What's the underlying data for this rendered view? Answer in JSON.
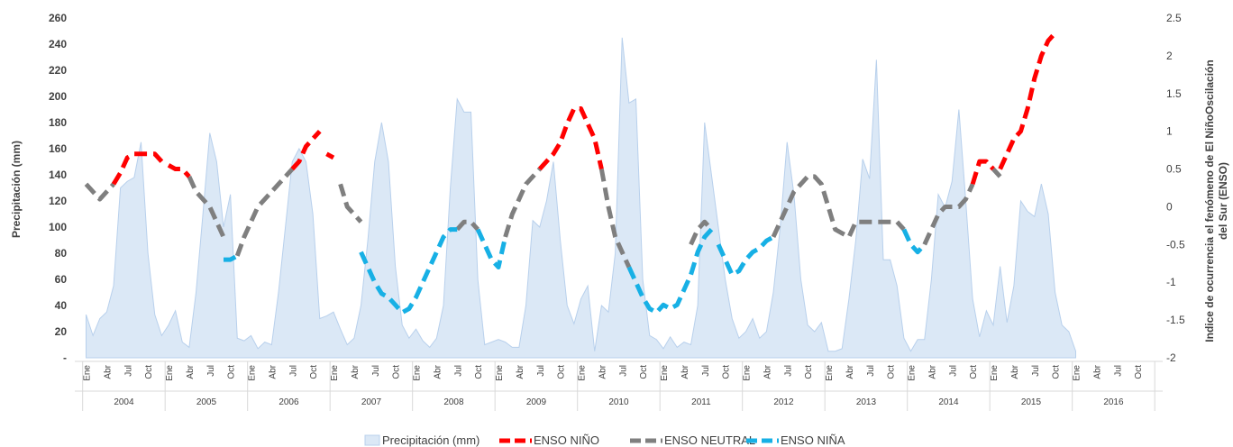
{
  "chart_data": {
    "type": "area",
    "ylabel_left": "Precipitación (mm)",
    "ylabel_right_line1": "Indice de ocurrencia el fenómeno de El NiñoOscilación",
    "ylabel_right_line2": "del  Sur (ENSO)",
    "left_ticks": [
      "260",
      "240",
      "220",
      "200",
      "180",
      "160",
      "140",
      "120",
      "100",
      "80",
      "60",
      "40",
      "20",
      "-"
    ],
    "left_ylim": [
      0,
      260
    ],
    "right_ticks": [
      "2.5",
      "2",
      "1.5",
      "1",
      "0.5",
      "0",
      "-0.5",
      "-1",
      "-1.5",
      "-2"
    ],
    "right_ylim": [
      -2,
      2.5
    ],
    "month_labels": [
      "Ene",
      "Abr",
      "Jul",
      "Oct"
    ],
    "years": [
      "2004",
      "2005",
      "2006",
      "2007",
      "2008",
      "2009",
      "2010",
      "2011",
      "2012",
      "2013",
      "2014",
      "2015",
      "2016"
    ],
    "legend": [
      "Precipitación (mm)",
      "ENSO  NIÑO",
      "ENSO NEUTRAL",
      "ENSO NIÑA"
    ],
    "colors": {
      "area_fill": "#dbe8f6",
      "area_stroke": "#b8d0ec",
      "nino": "#ff0000",
      "neutral": "#7f7f7f",
      "nina": "#17b0e5",
      "axis": "#d9d9d9"
    },
    "precipitation": [
      [
        0,
        33
      ],
      [
        1,
        17
      ],
      [
        2,
        30
      ],
      [
        3,
        35
      ],
      [
        4,
        55
      ],
      [
        5,
        130
      ],
      [
        6,
        135
      ],
      [
        7,
        138
      ],
      [
        8,
        165
      ],
      [
        9,
        80
      ],
      [
        10,
        33
      ],
      [
        11,
        17
      ],
      [
        12,
        25
      ],
      [
        13,
        36
      ],
      [
        14,
        12
      ],
      [
        15,
        8
      ],
      [
        16,
        50
      ],
      [
        17,
        110
      ],
      [
        18,
        172
      ],
      [
        19,
        150
      ],
      [
        20,
        100
      ],
      [
        21,
        125
      ],
      [
        22,
        15
      ],
      [
        23,
        13
      ],
      [
        24,
        17
      ],
      [
        25,
        7
      ],
      [
        26,
        12
      ],
      [
        27,
        10
      ],
      [
        28,
        50
      ],
      [
        29,
        100
      ],
      [
        30,
        150
      ],
      [
        31,
        160
      ],
      [
        32,
        150
      ],
      [
        33,
        110
      ],
      [
        34,
        30
      ],
      [
        35,
        32
      ],
      [
        36,
        35
      ],
      [
        37,
        22
      ],
      [
        38,
        10
      ],
      [
        39,
        15
      ],
      [
        40,
        40
      ],
      [
        41,
        90
      ],
      [
        42,
        150
      ],
      [
        43,
        180
      ],
      [
        44,
        150
      ],
      [
        45,
        70
      ],
      [
        46,
        25
      ],
      [
        47,
        15
      ],
      [
        48,
        22
      ],
      [
        49,
        13
      ],
      [
        50,
        8
      ],
      [
        51,
        15
      ],
      [
        52,
        40
      ],
      [
        53,
        130
      ],
      [
        54,
        198
      ],
      [
        55,
        188
      ],
      [
        56,
        188
      ],
      [
        57,
        60
      ],
      [
        58,
        10
      ],
      [
        59,
        12
      ],
      [
        60,
        14
      ],
      [
        61,
        12
      ],
      [
        62,
        8
      ],
      [
        63,
        8
      ],
      [
        64,
        40
      ],
      [
        65,
        105
      ],
      [
        66,
        100
      ],
      [
        67,
        120
      ],
      [
        68,
        150
      ],
      [
        69,
        90
      ],
      [
        70,
        40
      ],
      [
        71,
        26
      ],
      [
        72,
        45
      ],
      [
        73,
        55
      ],
      [
        74,
        5
      ],
      [
        75,
        40
      ],
      [
        76,
        35
      ],
      [
        77,
        80
      ],
      [
        78,
        245
      ],
      [
        79,
        195
      ],
      [
        80,
        198
      ],
      [
        81,
        60
      ],
      [
        82,
        17
      ],
      [
        83,
        14
      ],
      [
        84,
        7
      ],
      [
        85,
        16
      ],
      [
        86,
        8
      ],
      [
        87,
        12
      ],
      [
        88,
        10
      ],
      [
        89,
        40
      ],
      [
        90,
        180
      ],
      [
        91,
        140
      ],
      [
        92,
        100
      ],
      [
        93,
        60
      ],
      [
        94,
        30
      ],
      [
        95,
        15
      ],
      [
        96,
        20
      ],
      [
        97,
        30
      ],
      [
        98,
        15
      ],
      [
        99,
        20
      ],
      [
        100,
        50
      ],
      [
        101,
        100
      ],
      [
        102,
        165
      ],
      [
        103,
        125
      ],
      [
        104,
        60
      ],
      [
        105,
        25
      ],
      [
        106,
        20
      ],
      [
        107,
        27
      ],
      [
        108,
        5
      ],
      [
        109,
        5
      ],
      [
        110,
        7
      ],
      [
        111,
        45
      ],
      [
        112,
        90
      ],
      [
        113,
        152
      ],
      [
        114,
        137
      ],
      [
        115,
        228
      ],
      [
        116,
        75
      ],
      [
        117,
        75
      ],
      [
        118,
        55
      ],
      [
        119,
        15
      ],
      [
        120,
        5
      ],
      [
        121,
        14
      ],
      [
        122,
        14
      ],
      [
        123,
        60
      ],
      [
        124,
        125
      ],
      [
        125,
        115
      ],
      [
        126,
        135
      ],
      [
        127,
        190
      ],
      [
        128,
        120
      ],
      [
        129,
        45
      ],
      [
        130,
        16
      ],
      [
        131,
        36
      ],
      [
        132,
        25
      ],
      [
        133,
        70
      ],
      [
        134,
        27
      ],
      [
        135,
        55
      ],
      [
        136,
        120
      ],
      [
        137,
        112
      ],
      [
        138,
        108
      ],
      [
        139,
        133
      ],
      [
        140,
        110
      ],
      [
        141,
        50
      ],
      [
        142,
        25
      ],
      [
        143,
        20
      ],
      [
        144,
        5
      ]
    ],
    "enso_nino": [
      [
        [
          4,
          0.3
        ],
        [
          5,
          0.45
        ],
        [
          6,
          0.65
        ],
        [
          7,
          0.7
        ],
        [
          8,
          0.7
        ],
        [
          9,
          0.7
        ],
        [
          10,
          0.7
        ],
        [
          11,
          0.6
        ]
      ],
      [
        [
          12,
          0.55
        ],
        [
          13,
          0.5
        ],
        [
          14,
          0.5
        ],
        [
          15,
          0.4
        ]
      ],
      [
        [
          30,
          0.5
        ],
        [
          31,
          0.6
        ],
        [
          32,
          0.8
        ],
        [
          33,
          0.9
        ],
        [
          34,
          1.0
        ]
      ],
      [
        [
          35,
          0.7
        ],
        [
          36,
          0.65
        ]
      ],
      [
        [
          66,
          0.5
        ],
        [
          67,
          0.6
        ],
        [
          68,
          0.7
        ],
        [
          69,
          0.85
        ],
        [
          70,
          1.1
        ],
        [
          71,
          1.3
        ],
        [
          72,
          1.3
        ],
        [
          73,
          1.1
        ],
        [
          74,
          0.9
        ],
        [
          75,
          0.5
        ]
      ],
      [
        [
          129,
          0.3
        ],
        [
          130,
          0.6
        ],
        [
          131,
          0.6
        ],
        [
          132,
          0.5
        ]
      ],
      [
        [
          133,
          0.5
        ],
        [
          134,
          0.7
        ],
        [
          135,
          0.9
        ],
        [
          136,
          1.0
        ],
        [
          137,
          1.3
        ],
        [
          138,
          1.7
        ],
        [
          139,
          2.0
        ],
        [
          140,
          2.2
        ],
        [
          141,
          2.3
        ]
      ]
    ],
    "enso_neutral": [
      [
        [
          0,
          0.3
        ],
        [
          1,
          0.2
        ],
        [
          2,
          0.1
        ],
        [
          3,
          0.2
        ],
        [
          4,
          0.3
        ]
      ],
      [
        [
          15,
          0.4
        ],
        [
          16,
          0.2
        ],
        [
          17,
          0.1
        ],
        [
          18,
          0.0
        ],
        [
          19,
          -0.2
        ],
        [
          20,
          -0.4
        ]
      ],
      [
        [
          22,
          -0.65
        ],
        [
          23,
          -0.4
        ],
        [
          24,
          -0.2
        ],
        [
          25,
          0.0
        ],
        [
          26,
          0.1
        ],
        [
          27,
          0.2
        ],
        [
          28,
          0.3
        ],
        [
          29,
          0.4
        ],
        [
          30,
          0.5
        ]
      ],
      [
        [
          37,
          0.3
        ],
        [
          38,
          0.0
        ],
        [
          39,
          -0.1
        ],
        [
          40,
          -0.2
        ]
      ],
      [
        [
          54,
          -0.3
        ],
        [
          55,
          -0.2
        ],
        [
          56,
          -0.2
        ],
        [
          57,
          -0.3
        ]
      ],
      [
        [
          61,
          -0.4
        ],
        [
          62,
          -0.1
        ],
        [
          63,
          0.1
        ],
        [
          64,
          0.3
        ],
        [
          65,
          0.4
        ],
        [
          66,
          0.5
        ]
      ],
      [
        [
          75,
          0.5
        ],
        [
          76,
          0.0
        ],
        [
          77,
          -0.4
        ],
        [
          78,
          -0.6
        ],
        [
          79,
          -0.8
        ]
      ],
      [
        [
          88,
          -0.5
        ],
        [
          89,
          -0.3
        ],
        [
          90,
          -0.2
        ],
        [
          91,
          -0.3
        ]
      ],
      [
        [
          100,
          -0.4
        ],
        [
          101,
          -0.2
        ],
        [
          102,
          0.0
        ],
        [
          103,
          0.2
        ],
        [
          104,
          0.3
        ],
        [
          105,
          0.4
        ],
        [
          106,
          0.4
        ],
        [
          107,
          0.3
        ],
        [
          108,
          0.0
        ],
        [
          109,
          -0.3
        ],
        [
          110,
          -0.35
        ],
        [
          111,
          -0.4
        ],
        [
          112,
          -0.2
        ],
        [
          113,
          -0.2
        ],
        [
          114,
          -0.2
        ],
        [
          115,
          -0.2
        ],
        [
          116,
          -0.2
        ],
        [
          117,
          -0.2
        ],
        [
          118,
          -0.2
        ],
        [
          119,
          -0.3
        ]
      ],
      [
        [
          122,
          -0.5
        ],
        [
          123,
          -0.3
        ],
        [
          124,
          -0.1
        ],
        [
          125,
          0.0
        ],
        [
          126,
          0.0
        ],
        [
          127,
          0.0
        ],
        [
          128,
          0.1
        ],
        [
          129,
          0.3
        ]
      ],
      [
        [
          132,
          0.5
        ],
        [
          133,
          0.4
        ]
      ]
    ],
    "enso_nina": [
      [
        [
          20,
          -0.7
        ],
        [
          21,
          -0.7
        ],
        [
          22,
          -0.65
        ]
      ],
      [
        [
          40,
          -0.6
        ],
        [
          41,
          -0.8
        ],
        [
          42,
          -1.0
        ],
        [
          43,
          -1.15
        ],
        [
          44,
          -1.2
        ],
        [
          45,
          -1.3
        ],
        [
          46,
          -1.4
        ],
        [
          47,
          -1.35
        ],
        [
          48,
          -1.2
        ],
        [
          49,
          -1.0
        ],
        [
          50,
          -0.8
        ],
        [
          51,
          -0.6
        ],
        [
          52,
          -0.4
        ],
        [
          53,
          -0.3
        ],
        [
          54,
          -0.3
        ]
      ],
      [
        [
          57,
          -0.3
        ],
        [
          58,
          -0.5
        ],
        [
          59,
          -0.7
        ],
        [
          60,
          -0.8
        ],
        [
          61,
          -0.4
        ]
      ],
      [
        [
          79,
          -0.8
        ],
        [
          80,
          -1.0
        ],
        [
          81,
          -1.2
        ],
        [
          82,
          -1.35
        ],
        [
          83,
          -1.4
        ],
        [
          84,
          -1.3
        ],
        [
          85,
          -1.35
        ],
        [
          86,
          -1.3
        ],
        [
          87,
          -1.1
        ],
        [
          88,
          -0.9
        ],
        [
          89,
          -0.6
        ],
        [
          90,
          -0.4
        ],
        [
          91,
          -0.3
        ]
      ],
      [
        [
          92,
          -0.5
        ],
        [
          93,
          -0.7
        ],
        [
          94,
          -0.9
        ],
        [
          95,
          -0.85
        ],
        [
          96,
          -0.7
        ],
        [
          97,
          -0.6
        ],
        [
          98,
          -0.55
        ],
        [
          99,
          -0.45
        ],
        [
          100,
          -0.4
        ]
      ],
      [
        [
          119,
          -0.3
        ],
        [
          120,
          -0.5
        ],
        [
          121,
          -0.6
        ],
        [
          122,
          -0.5
        ]
      ]
    ]
  }
}
